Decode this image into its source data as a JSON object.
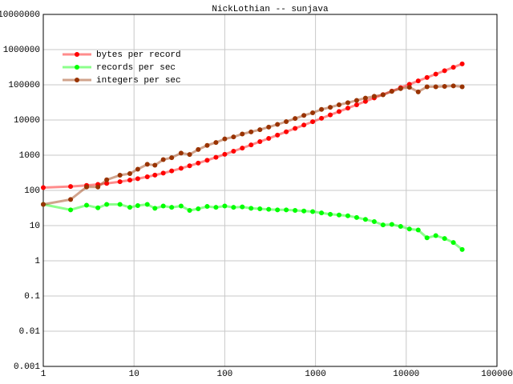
{
  "chart_data": {
    "type": "line",
    "title": "NickLothian -- sunjava",
    "xscale": "log",
    "yscale": "log",
    "grid": true,
    "legend": "upper-left",
    "xlim": [
      1,
      100000
    ],
    "xticks": [
      1,
      10,
      100,
      1000,
      10000,
      100000
    ],
    "ylim": [
      0.001,
      10000000
    ],
    "yticks": [
      0.001,
      0.01,
      0.1,
      1,
      10,
      100,
      1000,
      10000,
      100000,
      1000000,
      10000000
    ],
    "x": [
      1,
      2,
      3,
      4,
      5,
      7,
      9,
      11,
      14,
      17,
      21,
      26,
      33,
      41,
      51,
      64,
      80,
      100,
      125,
      156,
      195,
      244,
      305,
      381,
      476,
      596,
      745,
      931,
      1164,
      1455,
      1819,
      2274,
      2842,
      3553,
      4441,
      5551,
      6939,
      8674,
      10842,
      13553,
      16941,
      21176,
      26470,
      33088,
      41360
    ],
    "series": [
      {
        "name": "bytes per record",
        "color": "#ff0000",
        "values": [
          120,
          129,
          139,
          148,
          158,
          177,
          196,
          215,
          243,
          272,
          310,
          357,
          424,
          500,
          595,
          718,
          870,
          1060,
          1298,
          1592,
          1962,
          2428,
          3008,
          3730,
          4632,
          5772,
          7188,
          8954,
          11168,
          13932,
          17390,
          21713,
          27109,
          33864,
          42300,
          52845,
          66030,
          82513,
          103109,
          128864,
          161050,
          201282,
          251575,
          314446,
          393030
        ]
      },
      {
        "name": "records per sec",
        "color": "#00ff00",
        "values": [
          40,
          28,
          38,
          32,
          40,
          40,
          33,
          37,
          40,
          31,
          36,
          33,
          36,
          27,
          30,
          35,
          33,
          36,
          33,
          34,
          31,
          30,
          29,
          28,
          28,
          27,
          26,
          25,
          23,
          21,
          20,
          19,
          17,
          15,
          13,
          10.5,
          10.8,
          9.5,
          8,
          7.5,
          4.5,
          5.2,
          4.3,
          3.3,
          2.1
        ]
      },
      {
        "name": "integers per sec",
        "color": "#993300",
        "values": [
          40,
          55,
          125,
          125,
          200,
          270,
          300,
          400,
          550,
          520,
          750,
          850,
          1150,
          1050,
          1450,
          1900,
          2300,
          2900,
          3300,
          4000,
          4600,
          5300,
          6300,
          7500,
          9000,
          11000,
          13500,
          16000,
          20000,
          23000,
          27000,
          31000,
          36000,
          42000,
          47000,
          52000,
          65000,
          78000,
          85000,
          63000,
          88000,
          88000,
          90000,
          93000,
          88000
        ]
      }
    ]
  }
}
